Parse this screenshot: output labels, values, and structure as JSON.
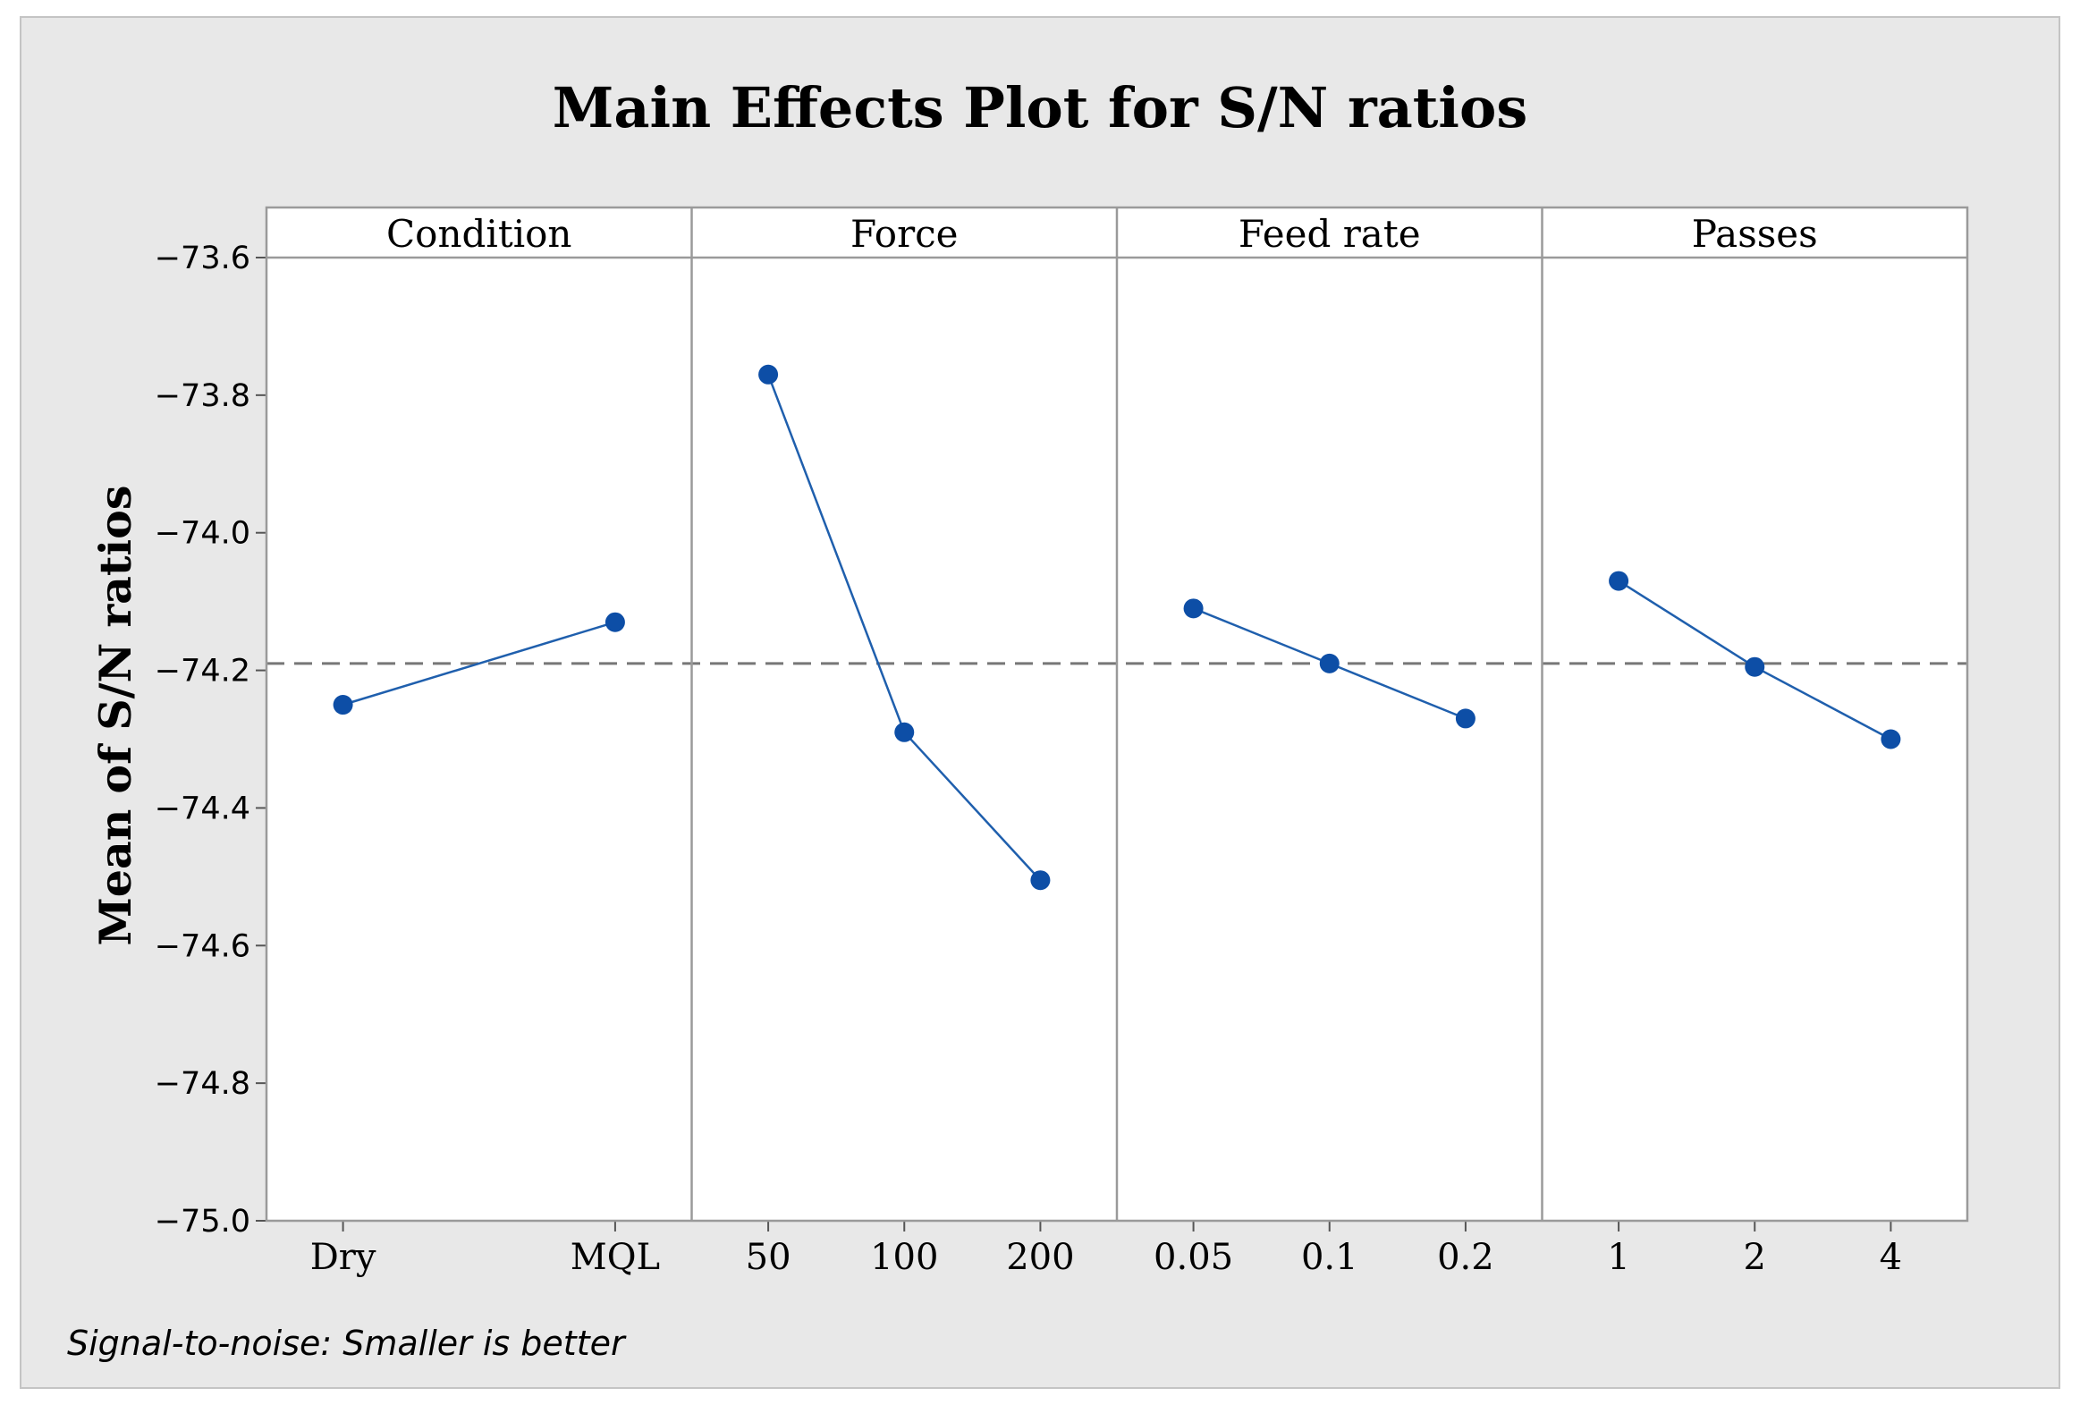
{
  "chart_data": {
    "type": "line",
    "title": "Main Effects Plot for S/N ratios",
    "ylabel": "Mean of S/N ratios",
    "ylim": [
      -75.0,
      -73.6
    ],
    "yticks": [
      -73.6,
      -73.8,
      -74.0,
      -74.2,
      -74.4,
      -74.6,
      -74.8,
      -75.0
    ],
    "ytick_labels": [
      "−73.6",
      "−73.8",
      "−74.0",
      "−74.2",
      "−74.4",
      "−74.6",
      "−74.8",
      "−75.0"
    ],
    "reference_line": {
      "value": -74.19,
      "style": "dashed"
    },
    "footnote": "Signal-to-noise: Smaller is better",
    "series_color": "#1f5fad",
    "marker_color": "#0d4ea6",
    "panels": [
      {
        "name": "Condition",
        "categories": [
          "Dry",
          "MQL"
        ],
        "values": [
          -74.25,
          -74.13
        ]
      },
      {
        "name": "Force",
        "categories": [
          "50",
          "100",
          "200"
        ],
        "values": [
          -73.77,
          -74.29,
          -74.505
        ]
      },
      {
        "name": "Feed rate",
        "categories": [
          "0.05",
          "0.1",
          "0.2"
        ],
        "values": [
          -74.11,
          -74.19,
          -74.27
        ]
      },
      {
        "name": "Passes",
        "categories": [
          "1",
          "2",
          "4"
        ],
        "values": [
          -74.07,
          -74.195,
          -74.3
        ]
      }
    ]
  }
}
